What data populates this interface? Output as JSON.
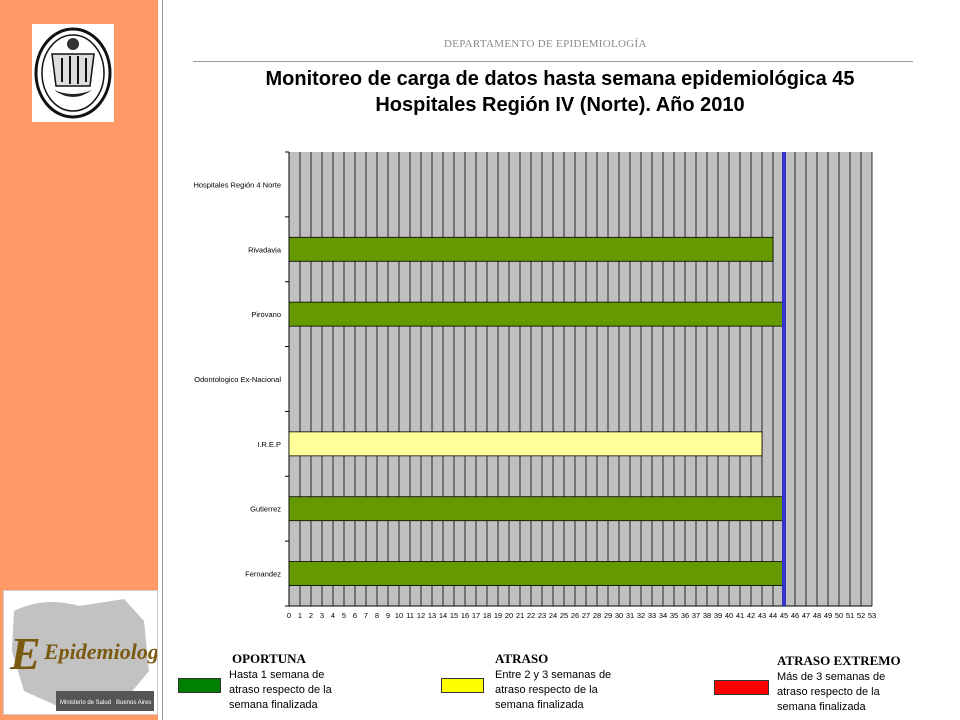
{
  "header": {
    "department": "DEPARTAMENTO  DE EPIDEMIOLOGÍA",
    "title_line1": "Monitoreo de carga de datos hasta semana epidemiológica 45",
    "title_line2": "Hospitales Región IV (Norte). Año 2010"
  },
  "logos": {
    "seal": "coat-of-arms",
    "epidemiologia_text": "Epidemiología",
    "ministry_text": "Ministerio de Salud",
    "city_text": "Buenos Aires"
  },
  "colors": {
    "oportuna": "#669900",
    "atraso": "#FFFF99",
    "atraso_extremo": "#FF0000",
    "current_week_line": "#3333CC",
    "plot_bg": "#C0C0C0",
    "sidebar": "#FF9966"
  },
  "chart_data": {
    "type": "bar",
    "orientation": "horizontal",
    "categories": [
      "Hospitales Región 4 Norte",
      "Rivadavia",
      "Pirovano",
      "Odontologico Ex-Nacional",
      "I.R.E.P",
      "Gutierrez",
      "Fernandez"
    ],
    "values": [
      0,
      44,
      45,
      0,
      43,
      45,
      45
    ],
    "status": [
      "",
      "oportuna",
      "oportuna",
      "",
      "atraso",
      "oportuna",
      "oportuna"
    ],
    "xlim": [
      0,
      53
    ],
    "xticks": [
      "0",
      "1",
      "2",
      "3",
      "4",
      "5",
      "6",
      "7",
      "8",
      "9",
      "10",
      "11",
      "12",
      "13",
      "14",
      "15",
      "16",
      "17",
      "18",
      "19",
      "20",
      "21",
      "22",
      "23",
      "24",
      "25",
      "26",
      "27",
      "28",
      "29",
      "30",
      "31",
      "32",
      "33",
      "34",
      "35",
      "36",
      "37",
      "38",
      "39",
      "40",
      "41",
      "42",
      "43",
      "44",
      "45",
      "46",
      "47",
      "48",
      "49",
      "50",
      "51",
      "52",
      "53"
    ],
    "reference_week": 45,
    "grid": true
  },
  "legend": {
    "items": [
      {
        "title": "OPORTUNA",
        "lines": [
          "Hasta  1  semana  de",
          "atraso  respecto  de  la",
          "semana finalizada"
        ],
        "color": "#008000"
      },
      {
        "title": "ATRASO",
        "lines": [
          "Entre  2  y  3  semanas  de",
          "atraso  respecto  de  la",
          "semana finalizada"
        ],
        "color": "#FFFF00"
      },
      {
        "title": "ATRASO EXTREMO",
        "lines": [
          "Más  de  3  semanas  de",
          "atraso  respecto  de  la",
          "semana finalizada"
        ],
        "color": "#FF0000"
      }
    ]
  }
}
